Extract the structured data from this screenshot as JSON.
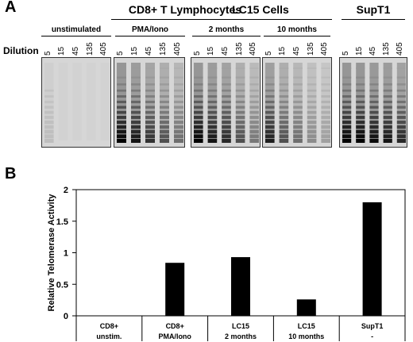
{
  "panel_a": {
    "letter": "A",
    "dilution_label": "Dilution",
    "groups": [
      {
        "title": "CD8+ T Lymphocytes",
        "conditions": [
          {
            "label": "unstimulated",
            "dilutions": [
              "5",
              "15",
              "45",
              "135",
              "405"
            ],
            "intensity": [
              0.05,
              0,
              0,
              0,
              0
            ]
          },
          {
            "label": "PMA/Iono",
            "dilutions": [
              "5",
              "15",
              "45",
              "135",
              "405"
            ],
            "intensity": [
              1,
              0.9,
              0.75,
              0.6,
              0.45
            ]
          }
        ]
      },
      {
        "title": "LC15 Cells",
        "conditions": [
          {
            "label": "2 months",
            "dilutions": [
              "5",
              "15",
              "45",
              "135",
              "405"
            ],
            "intensity": [
              1,
              0.9,
              0.8,
              0.6,
              0.4
            ]
          },
          {
            "label": "10 months",
            "dilutions": [
              "5",
              "15",
              "45",
              "135",
              "405"
            ],
            "intensity": [
              0.85,
              0.6,
              0.45,
              0.3,
              0.2
            ]
          }
        ]
      },
      {
        "title": "SupT1",
        "conditions": [
          {
            "label": "",
            "dilutions": [
              "5",
              "15",
              "45",
              "135",
              "405"
            ],
            "intensity": [
              1,
              1,
              0.95,
              0.9,
              0.8
            ]
          }
        ]
      }
    ]
  },
  "panel_b": {
    "letter": "B",
    "chart_data": {
      "type": "bar",
      "ylabel": "Relative Telomerase Activity",
      "ylim": [
        0,
        2
      ],
      "yticks": [
        "0",
        "0.5",
        "1",
        "1.5",
        "2"
      ],
      "categories": [
        {
          "line1": "CD8+",
          "line2": "unstim."
        },
        {
          "line1": "CD8+",
          "line2": "PMA/Iono"
        },
        {
          "line1": "LC15",
          "line2": "2 months"
        },
        {
          "line1": "LC15",
          "line2": "10 months"
        },
        {
          "line1": "SupT1",
          "line2": "-"
        }
      ],
      "values": [
        0,
        0.84,
        0.93,
        0.26,
        1.8
      ],
      "bar_color": "#000000"
    }
  }
}
